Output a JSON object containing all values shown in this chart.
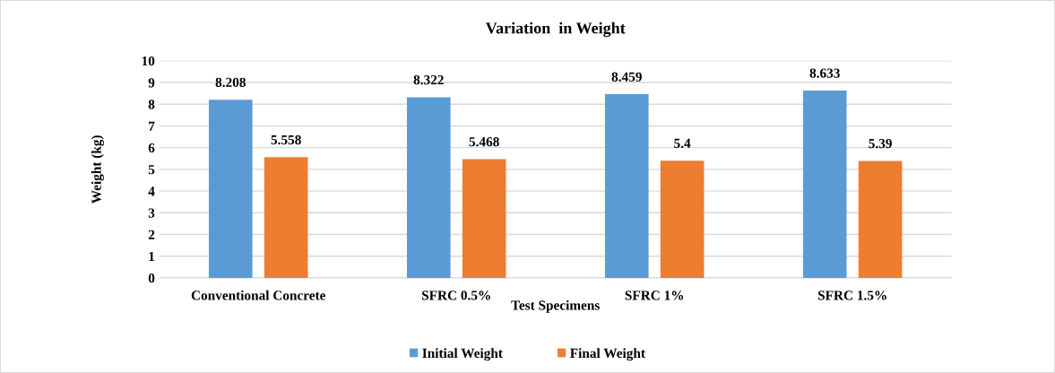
{
  "chart_data": {
    "type": "bar",
    "title": "Variation  in Weight",
    "xlabel": "Test Specimens",
    "ylabel": "Weight (kg)",
    "categories": [
      "Conventional Concrete",
      "SFRC 0.5%",
      "SFRC 1%",
      "SFRC 1.5%"
    ],
    "series": [
      {
        "name": "Initial Weight",
        "color": "#5b9bd5",
        "values": [
          8.208,
          8.322,
          8.459,
          8.633
        ]
      },
      {
        "name": "Final Weight",
        "color": "#ed7d31",
        "values": [
          5.558,
          5.468,
          5.4,
          5.39
        ]
      }
    ],
    "ylim": [
      0,
      10
    ],
    "yticks": [
      0,
      1,
      2,
      3,
      4,
      5,
      6,
      7,
      8,
      9,
      10
    ],
    "grid": "y",
    "legend": "bottom",
    "data_labels": true
  }
}
